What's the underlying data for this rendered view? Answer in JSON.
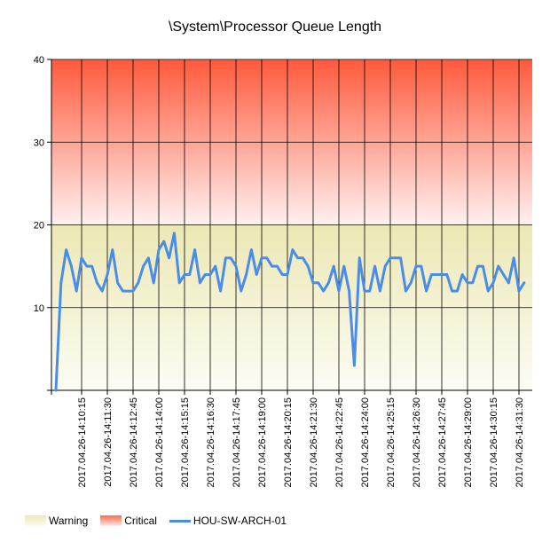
{
  "chart_data": {
    "type": "line",
    "title": "\\System\\Processor Queue Length",
    "ylim": [
      0,
      40
    ],
    "yticks": [
      {
        "value": 0,
        "label": ""
      },
      {
        "value": 10,
        "label": "10"
      },
      {
        "value": 20,
        "label": "20"
      },
      {
        "value": 30,
        "label": "30"
      },
      {
        "value": 40,
        "label": "40"
      }
    ],
    "xtick_labels": [
      "2017.04.26-14:10:15",
      "2017.04.26-14:11:30",
      "2017.04.26-14:12:45",
      "2017.04.26-14:14:00",
      "2017.04.26-14:15:15",
      "2017.04.26-14:16:30",
      "2017.04.26-14:17:45",
      "2017.04.26-14:19:00",
      "2017.04.26-14:20:15",
      "2017.04.26-14:21:30",
      "2017.04.26-14:22:45",
      "2017.04.26-14:24:00",
      "2017.04.26-14:25:15",
      "2017.04.26-14:26:30",
      "2017.04.26-14:27:45",
      "2017.04.26-14:29:00",
      "2017.04.26-14:30:15",
      "2017.04.26-14:31:30"
    ],
    "xtick_step": 5,
    "bands": [
      {
        "name": "Warning",
        "from": 0,
        "to": 20,
        "color_top": "#ece8b4",
        "color_bottom": "#fcfcf4"
      },
      {
        "name": "Critical",
        "from": 20,
        "to": 40,
        "color_top": "#ff5a3c",
        "color_bottom": "#fff0f0"
      }
    ],
    "series": [
      {
        "name": "HOU-SW-ARCH-01",
        "color": "#4a8de8",
        "values": [
          0,
          13,
          17,
          15,
          12,
          16,
          15,
          15,
          13,
          12,
          14,
          17,
          13,
          12,
          12,
          12,
          13,
          15,
          16,
          13,
          17,
          18,
          16,
          19,
          13,
          14,
          14,
          17,
          13,
          14,
          14,
          15,
          12,
          16,
          16,
          15,
          12,
          14,
          17,
          14,
          16,
          16,
          15,
          15,
          14,
          14,
          17,
          16,
          16,
          15,
          13,
          13,
          12,
          13,
          15,
          12,
          15,
          12,
          3,
          16,
          12,
          12,
          15,
          12,
          15,
          16,
          16,
          16,
          12,
          13,
          15,
          15,
          12,
          14,
          14,
          14,
          14,
          12,
          12,
          14,
          13,
          13,
          15,
          15,
          12,
          13,
          15,
          14,
          13,
          16,
          12,
          13
        ]
      }
    ],
    "legend": {
      "position": "bottom-left",
      "items": [
        {
          "label": "Warning",
          "kind": "warning"
        },
        {
          "label": "Critical",
          "kind": "critical"
        },
        {
          "label": "HOU-SW-ARCH-01",
          "kind": "line"
        }
      ]
    }
  }
}
